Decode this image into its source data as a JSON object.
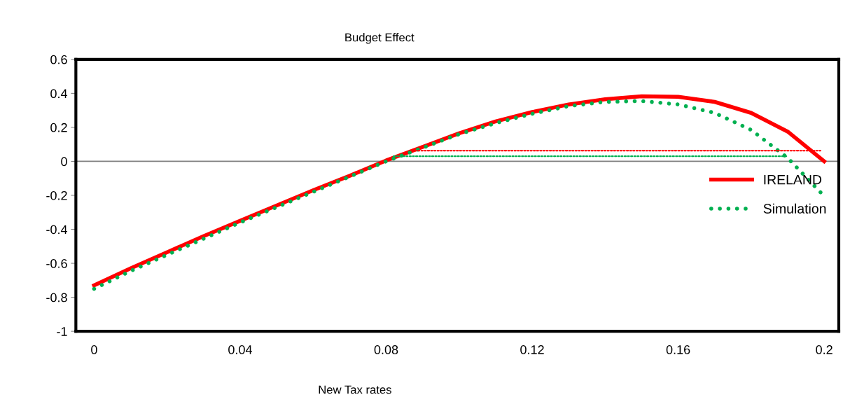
{
  "chart_data": {
    "type": "line",
    "title": "Budget Effect",
    "xlabel": "New Tax rates",
    "x": [
      0,
      0.01,
      0.02,
      0.03,
      0.04,
      0.05,
      0.06,
      0.07,
      0.08,
      0.09,
      0.1,
      0.11,
      0.12,
      0.13,
      0.14,
      0.15,
      0.16,
      0.17,
      0.18,
      0.19,
      0.2
    ],
    "series": [
      {
        "name": "IRELAND",
        "color": "#ff0000",
        "line_style": "solid",
        "values": [
          -0.73,
          -0.63,
          -0.535,
          -0.44,
          -0.35,
          -0.26,
          -0.17,
          -0.085,
          0.005,
          0.085,
          0.165,
          0.235,
          0.29,
          0.335,
          0.365,
          0.383,
          0.38,
          0.35,
          0.285,
          0.175,
          0.0
        ]
      },
      {
        "name": "Simulation",
        "color": "#00b050",
        "line_style": "dotted",
        "values": [
          -0.75,
          -0.645,
          -0.55,
          -0.455,
          -0.36,
          -0.27,
          -0.18,
          -0.09,
          0.0,
          0.08,
          0.16,
          0.225,
          0.28,
          0.325,
          0.35,
          0.355,
          0.335,
          0.285,
          0.185,
          0.02,
          -0.205
        ]
      },
      {
        "color": "#ff0000",
        "line_style": "dotted",
        "x": [
          0.087,
          0.199
        ],
        "values": [
          0.063,
          0.063
        ]
      },
      {
        "color": "#00b050",
        "line_style": "dotted",
        "x": [
          0.082,
          0.19
        ],
        "values": [
          0.03,
          0.03
        ]
      }
    ],
    "xlim": [
      -0.005,
      0.204
    ],
    "ylim": [
      -1,
      0.6
    ],
    "xticks": [
      0,
      0.04,
      0.08,
      0.12,
      0.16,
      0.2
    ],
    "yticks": [
      -1,
      -0.8,
      -0.6,
      -0.4,
      -0.2,
      0,
      0.2,
      0.4,
      0.6
    ],
    "ref_lines": [
      {
        "axis": "y",
        "value": 0,
        "color": "#808080"
      }
    ],
    "grid": false,
    "legend": "right",
    "marker": "none"
  }
}
